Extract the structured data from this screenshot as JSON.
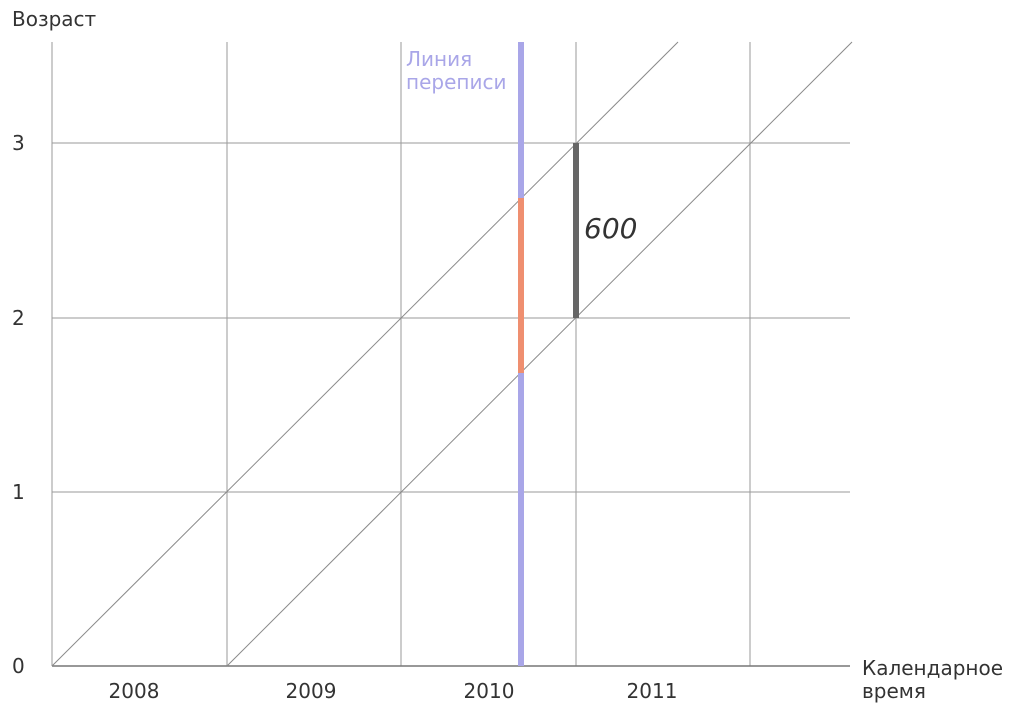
{
  "y_axis": {
    "title": "Возраст",
    "ticks": [
      "0",
      "1",
      "2",
      "3"
    ]
  },
  "x_axis": {
    "title_line1": "Календарное",
    "title_line2": "время",
    "year_labels": [
      "2008",
      "2009",
      "2010",
      "2011"
    ]
  },
  "census_line": {
    "label_line1": "Линия",
    "label_line2": "переписи",
    "color": "#a9a6e8"
  },
  "highlight": {
    "color": "#ef8f70"
  },
  "measure": {
    "label": "600",
    "color": "#666666"
  },
  "colors": {
    "grid": "#9a9a9a",
    "axis": "#777777",
    "text": "#333333"
  }
}
